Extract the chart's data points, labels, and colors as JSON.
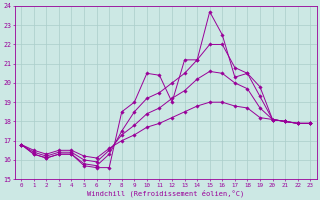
{
  "xlabel": "Windchill (Refroidissement éolien,°C)",
  "xlim": [
    -0.5,
    23.5
  ],
  "ylim": [
    15,
    24
  ],
  "yticks": [
    15,
    16,
    17,
    18,
    19,
    20,
    21,
    22,
    23,
    24
  ],
  "xticks": [
    0,
    1,
    2,
    3,
    4,
    5,
    6,
    7,
    8,
    9,
    10,
    11,
    12,
    13,
    14,
    15,
    16,
    17,
    18,
    19,
    20,
    21,
    22,
    23
  ],
  "bg_color": "#cce8e4",
  "grid_color": "#aaceca",
  "line_color": "#990099",
  "lines": [
    [
      16.8,
      16.3,
      16.1,
      16.3,
      16.3,
      15.7,
      15.6,
      15.6,
      18.5,
      19.0,
      20.5,
      20.4,
      19.0,
      21.2,
      21.2,
      23.7,
      22.5,
      20.3,
      20.5,
      19.8,
      18.1,
      18.0,
      17.9,
      17.9
    ],
    [
      16.8,
      16.3,
      16.1,
      16.3,
      16.3,
      15.8,
      15.7,
      16.3,
      17.5,
      18.5,
      19.2,
      19.5,
      20.0,
      20.5,
      21.2,
      22.0,
      22.0,
      20.8,
      20.5,
      19.3,
      18.1,
      18.0,
      17.9,
      17.9
    ],
    [
      16.8,
      16.4,
      16.2,
      16.4,
      16.4,
      16.0,
      15.9,
      16.5,
      17.3,
      17.8,
      18.4,
      18.7,
      19.2,
      19.6,
      20.2,
      20.6,
      20.5,
      20.0,
      19.7,
      18.7,
      18.1,
      18.0,
      17.9,
      17.9
    ],
    [
      16.8,
      16.5,
      16.3,
      16.5,
      16.5,
      16.2,
      16.1,
      16.6,
      17.0,
      17.3,
      17.7,
      17.9,
      18.2,
      18.5,
      18.8,
      19.0,
      19.0,
      18.8,
      18.7,
      18.2,
      18.1,
      18.0,
      17.9,
      17.9
    ]
  ]
}
